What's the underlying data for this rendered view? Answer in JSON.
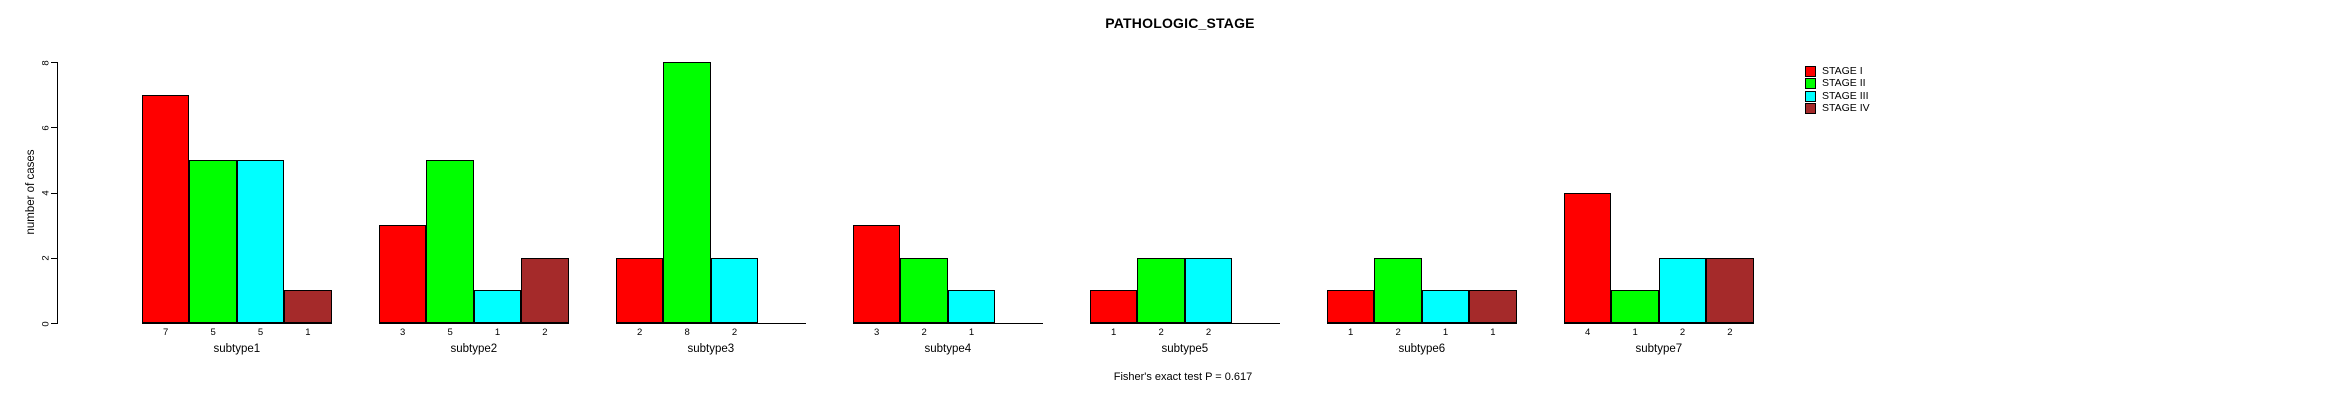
{
  "title": "PATHOLOGIC_STAGE",
  "ylabel": "number of cases",
  "annotation": "Fisher's exact test P = 0.617",
  "legend": {
    "items": [
      {
        "label": "STAGE I",
        "color": "#FF0000"
      },
      {
        "label": "STAGE II",
        "color": "#00FF00"
      },
      {
        "label": "STAGE III",
        "color": "#00FFFF"
      },
      {
        "label": "STAGE IV",
        "color": "#A52A2A"
      }
    ]
  },
  "chart_data": {
    "type": "bar",
    "title": "PATHOLOGIC_STAGE",
    "xlabel": "",
    "ylabel": "number of cases",
    "annotation": "Fisher's exact test P = 0.617",
    "categories": [
      "subtype1",
      "subtype2",
      "subtype3",
      "subtype4",
      "subtype5",
      "subtype6",
      "subtype7"
    ],
    "series": [
      {
        "name": "STAGE I",
        "color": "#FF0000",
        "values": [
          7,
          3,
          2,
          3,
          1,
          1,
          4
        ]
      },
      {
        "name": "STAGE II",
        "color": "#00FF00",
        "values": [
          5,
          5,
          8,
          2,
          2,
          2,
          1
        ]
      },
      {
        "name": "STAGE III",
        "color": "#00FFFF",
        "values": [
          5,
          1,
          2,
          1,
          2,
          1,
          2
        ]
      },
      {
        "name": "STAGE IV",
        "color": "#A52A2A",
        "values": [
          1,
          2,
          0,
          0,
          0,
          1,
          2
        ]
      }
    ],
    "bar_value_labels_shown": true,
    "zero_bars_hidden": true,
    "ylim": [
      0,
      8
    ],
    "yticks": [
      0,
      2,
      4,
      6,
      8
    ],
    "grid": false,
    "legend_position": "top-right"
  }
}
